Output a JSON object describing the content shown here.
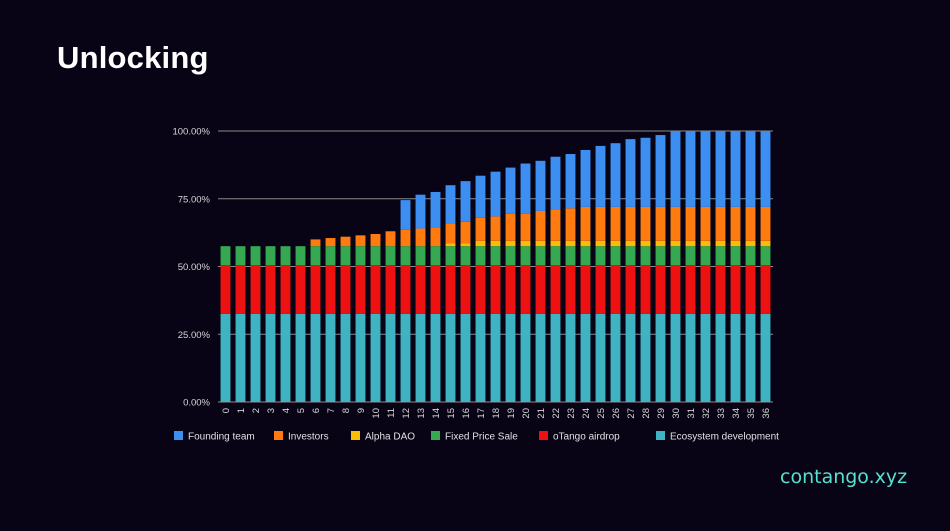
{
  "slide": {
    "title": "Unlocking",
    "brand": "contango.xyz",
    "brand_color": "#56e0cf",
    "background": "#080415"
  },
  "chart_data": {
    "type": "bar",
    "stacked": true,
    "title": "",
    "xlabel": "",
    "ylabel": "",
    "ylim": [
      0,
      100
    ],
    "y_ticks": [
      "0.00%",
      "25.00%",
      "50.00%",
      "75.00%",
      "100.00%"
    ],
    "grid": "horizontal",
    "legend_position": "bottom",
    "categories": [
      "0",
      "1",
      "2",
      "3",
      "4",
      "5",
      "6",
      "7",
      "8",
      "9",
      "10",
      "11",
      "12",
      "13",
      "14",
      "15",
      "16",
      "17",
      "18",
      "19",
      "20",
      "21",
      "22",
      "23",
      "24",
      "25",
      "26",
      "27",
      "28",
      "29",
      "30",
      "31",
      "32",
      "33",
      "34",
      "35",
      "36"
    ],
    "series": [
      {
        "name": "Ecosystem development",
        "color": "#3fb3c2",
        "values": [
          32.5,
          32.5,
          32.5,
          32.5,
          32.5,
          32.5,
          32.5,
          32.5,
          32.5,
          32.5,
          32.5,
          32.5,
          32.5,
          32.5,
          32.5,
          32.5,
          32.5,
          32.5,
          32.5,
          32.5,
          32.5,
          32.5,
          32.5,
          32.5,
          32.5,
          32.5,
          32.5,
          32.5,
          32.5,
          32.5,
          32.5,
          32.5,
          32.5,
          32.5,
          32.5,
          32.5,
          32.5
        ]
      },
      {
        "name": "oTango airdrop",
        "color": "#ee1111",
        "values": [
          18,
          18,
          18,
          18,
          18,
          18,
          18,
          18,
          18,
          18,
          18,
          18,
          18,
          18,
          18,
          18,
          18,
          18,
          18,
          18,
          18,
          18,
          18,
          18,
          18,
          18,
          18,
          18,
          18,
          18,
          18,
          18,
          18,
          18,
          18,
          18,
          18
        ]
      },
      {
        "name": "Fixed Price Sale",
        "color": "#35a852",
        "values": [
          7,
          7,
          7,
          7,
          7,
          7,
          7,
          7,
          7,
          7,
          7,
          7,
          7,
          7,
          7,
          7,
          7,
          7,
          7,
          7,
          7,
          7,
          7,
          7,
          7,
          7,
          7,
          7,
          7,
          7,
          7,
          7,
          7,
          7,
          7,
          7,
          7
        ]
      },
      {
        "name": "Alpha DAO",
        "color": "#fbbc05",
        "values": [
          0,
          0,
          0,
          0,
          0,
          0,
          0,
          0,
          0,
          0,
          0,
          0,
          0,
          0,
          0,
          1,
          1,
          2,
          2,
          2,
          2,
          2,
          2,
          2,
          2,
          2,
          2,
          2,
          2,
          2,
          2,
          2,
          2,
          2,
          2,
          2,
          2
        ]
      },
      {
        "name": "Investors",
        "color": "#ff7a0f",
        "values": [
          0,
          0,
          0,
          0,
          0,
          0,
          2.5,
          3,
          3.5,
          4,
          4.5,
          5.5,
          6,
          6.5,
          7,
          7.5,
          8,
          8.5,
          9,
          10,
          10,
          11,
          11.5,
          12,
          12.5,
          12.5,
          12.5,
          12.5,
          12.5,
          12.5,
          12.5,
          12.5,
          12.5,
          12.5,
          12.5,
          12.5,
          12.5
        ]
      },
      {
        "name": "Founding team",
        "color": "#3c8ff0",
        "values": [
          0,
          0,
          0,
          0,
          0,
          0,
          0,
          0,
          0,
          0,
          0,
          0,
          11,
          12.5,
          13,
          14,
          15,
          15.5,
          16.5,
          17,
          18.5,
          18.5,
          19.5,
          20,
          21,
          22.5,
          23.5,
          25,
          25.5,
          26.5,
          28,
          28,
          28,
          28,
          28,
          28,
          28
        ]
      }
    ],
    "legend_order": [
      "Founding team",
      "Investors",
      "Alpha DAO",
      "Fixed Price Sale",
      "oTango airdrop",
      "Ecosystem development"
    ]
  }
}
